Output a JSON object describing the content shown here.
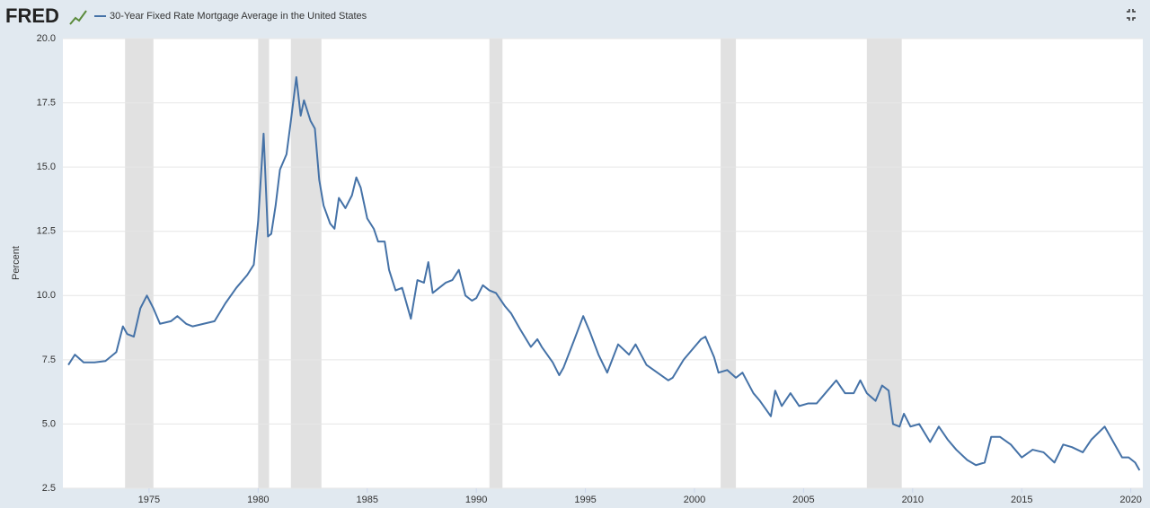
{
  "chart_data": {
    "type": "line",
    "logo": "FRED",
    "ylabel": "Percent",
    "xlim": [
      1971.05,
      2020.55
    ],
    "ylim": [
      2.5,
      20
    ],
    "xticks": [
      1975,
      1980,
      1985,
      1990,
      1995,
      2000,
      2005,
      2010,
      2015,
      2020
    ],
    "yticks": [
      2.5,
      {
        "value": 5,
        "label": "5.0"
      },
      7.5,
      {
        "value": 10,
        "label": "10.0"
      },
      12.5,
      {
        "value": 15,
        "label": "15.0"
      },
      17.5,
      {
        "value": 20,
        "label": "20.0"
      }
    ],
    "grid": true,
    "recession_color": "#e1e1e1",
    "recessions": [
      [
        1973.9,
        1975.2
      ],
      [
        1980.0,
        1980.5
      ],
      [
        1981.5,
        1982.9
      ],
      [
        1990.6,
        1991.2
      ],
      [
        2001.2,
        2001.9
      ],
      [
        2007.9,
        2009.5
      ]
    ],
    "x": [
      1971.3,
      1971.6,
      1972.0,
      1972.5,
      1973.0,
      1973.5,
      1973.8,
      1974.0,
      1974.3,
      1974.6,
      1974.9,
      1975.2,
      1975.5,
      1976.0,
      1976.3,
      1976.7,
      1977.0,
      1977.5,
      1978.0,
      1978.5,
      1979.0,
      1979.5,
      1979.8,
      1980.0,
      1980.25,
      1980.45,
      1980.6,
      1980.8,
      1981.0,
      1981.3,
      1981.5,
      1981.75,
      1981.95,
      1982.1,
      1982.4,
      1982.6,
      1982.8,
      1983.0,
      1983.3,
      1983.5,
      1983.7,
      1984.0,
      1984.3,
      1984.5,
      1984.7,
      1985.0,
      1985.3,
      1985.5,
      1985.8,
      1986.0,
      1986.3,
      1986.6,
      1987.0,
      1987.3,
      1987.6,
      1987.8,
      1988.0,
      1988.3,
      1988.6,
      1988.9,
      1989.2,
      1989.5,
      1989.8,
      1990.0,
      1990.3,
      1990.6,
      1990.9,
      1991.3,
      1991.6,
      1992.0,
      1992.5,
      1992.8,
      1993.0,
      1993.5,
      1993.8,
      1994.0,
      1994.5,
      1994.9,
      1995.2,
      1995.6,
      1996.0,
      1996.5,
      1997.0,
      1997.3,
      1997.8,
      1998.3,
      1998.8,
      1999.0,
      1999.5,
      1999.9,
      2000.3,
      2000.5,
      2000.9,
      2001.1,
      2001.5,
      2001.9,
      2002.2,
      2002.7,
      2003.0,
      2003.5,
      2003.7,
      2004.0,
      2004.4,
      2004.8,
      2005.2,
      2005.6,
      2006.0,
      2006.5,
      2006.9,
      2007.3,
      2007.6,
      2007.9,
      2008.3,
      2008.6,
      2008.9,
      2009.1,
      2009.4,
      2009.6,
      2009.9,
      2010.3,
      2010.8,
      2011.2,
      2011.6,
      2012.0,
      2012.5,
      2012.9,
      2013.3,
      2013.6,
      2014.0,
      2014.5,
      2015.0,
      2015.5,
      2016.0,
      2016.5,
      2016.9,
      2017.3,
      2017.8,
      2018.2,
      2018.8,
      2019.2,
      2019.6,
      2019.9,
      2020.2,
      2020.4
    ],
    "series": [
      {
        "name": "30-Year Fixed Rate Mortgage Average in the United States",
        "color": "#4572a7",
        "values": [
          7.3,
          7.7,
          7.4,
          7.4,
          7.45,
          7.8,
          8.8,
          8.5,
          8.4,
          9.5,
          10.0,
          9.5,
          8.9,
          9.0,
          9.2,
          8.9,
          8.8,
          8.9,
          9.0,
          9.7,
          10.3,
          10.8,
          11.2,
          12.9,
          16.3,
          12.3,
          12.4,
          13.5,
          14.9,
          15.5,
          16.8,
          18.5,
          17.0,
          17.6,
          16.8,
          16.5,
          14.5,
          13.5,
          12.8,
          12.6,
          13.8,
          13.4,
          13.9,
          14.6,
          14.2,
          13.0,
          12.6,
          12.1,
          12.1,
          11.0,
          10.2,
          10.3,
          9.1,
          10.6,
          10.5,
          11.3,
          10.1,
          10.3,
          10.5,
          10.6,
          11.0,
          10.0,
          9.8,
          9.9,
          10.4,
          10.2,
          10.1,
          9.6,
          9.3,
          8.7,
          8.0,
          8.3,
          8.0,
          7.4,
          6.9,
          7.2,
          8.3,
          9.2,
          8.6,
          7.7,
          7.0,
          8.1,
          7.7,
          8.1,
          7.3,
          7.0,
          6.7,
          6.8,
          7.5,
          7.9,
          8.3,
          8.4,
          7.6,
          7.0,
          7.1,
          6.8,
          7.0,
          6.2,
          5.9,
          5.3,
          6.3,
          5.7,
          6.2,
          5.7,
          5.8,
          5.8,
          6.2,
          6.7,
          6.2,
          6.2,
          6.7,
          6.2,
          5.9,
          6.5,
          6.3,
          5.0,
          4.9,
          5.4,
          4.9,
          5.0,
          4.3,
          4.9,
          4.4,
          4.0,
          3.6,
          3.4,
          3.5,
          4.5,
          4.5,
          4.2,
          3.7,
          4.0,
          3.9,
          3.5,
          4.2,
          4.1,
          3.9,
          4.4,
          4.9,
          4.3,
          3.7,
          3.7,
          3.5,
          3.2
        ]
      }
    ]
  }
}
